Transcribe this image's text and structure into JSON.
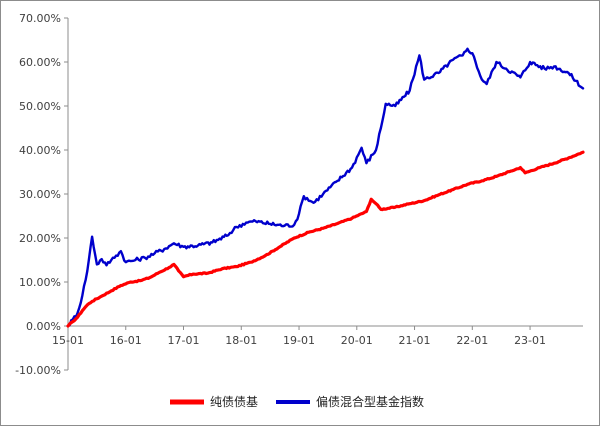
{
  "chart_data": {
    "type": "line",
    "title": "",
    "xlabel": "",
    "ylabel": "",
    "y_axis": {
      "ylim": [
        -10,
        70
      ],
      "step": 10,
      "tick_labels": [
        "-10.00%",
        "0.00%",
        "10.00%",
        "20.00%",
        "30.00%",
        "40.00%",
        "50.00%",
        "60.00%",
        "70.00%"
      ]
    },
    "x_axis": {
      "xlim": [
        "2015-01",
        "2023-12"
      ],
      "tick_labels": [
        "15-01",
        "16-01",
        "17-01",
        "18-01",
        "19-01",
        "20-01",
        "21-01",
        "22-01",
        "23-01"
      ]
    },
    "grid": false,
    "legend_position": "bottom",
    "series": [
      {
        "name": "纯债债基",
        "color": "#ff0000",
        "points": [
          [
            "2015-01",
            0.0
          ],
          [
            "2015-02",
            1.0
          ],
          [
            "2015-03",
            2.0
          ],
          [
            "2015-04",
            3.5
          ],
          [
            "2015-05",
            4.8
          ],
          [
            "2015-06",
            5.6
          ],
          [
            "2015-08",
            6.8
          ],
          [
            "2015-10",
            8.0
          ],
          [
            "2015-12",
            9.2
          ],
          [
            "2016-02",
            10.0
          ],
          [
            "2016-04",
            10.3
          ],
          [
            "2016-06",
            11.0
          ],
          [
            "2016-08",
            12.2
          ],
          [
            "2016-10",
            13.3
          ],
          [
            "2016-11",
            14.0
          ],
          [
            "2016-12",
            12.5
          ],
          [
            "2017-01",
            11.2
          ],
          [
            "2017-03",
            11.8
          ],
          [
            "2017-06",
            12.0
          ],
          [
            "2017-09",
            13.0
          ],
          [
            "2017-12",
            13.5
          ],
          [
            "2018-03",
            14.5
          ],
          [
            "2018-06",
            16.0
          ],
          [
            "2018-09",
            18.0
          ],
          [
            "2018-12",
            20.0
          ],
          [
            "2019-03",
            21.3
          ],
          [
            "2019-06",
            22.2
          ],
          [
            "2019-09",
            23.3
          ],
          [
            "2019-12",
            24.5
          ],
          [
            "2020-03",
            26.0
          ],
          [
            "2020-04",
            28.8
          ],
          [
            "2020-05",
            27.8
          ],
          [
            "2020-06",
            26.5
          ],
          [
            "2020-09",
            27.0
          ],
          [
            "2020-12",
            27.8
          ],
          [
            "2021-03",
            28.5
          ],
          [
            "2021-06",
            29.8
          ],
          [
            "2021-09",
            31.0
          ],
          [
            "2021-12",
            32.2
          ],
          [
            "2022-03",
            33.0
          ],
          [
            "2022-06",
            34.0
          ],
          [
            "2022-09",
            35.2
          ],
          [
            "2022-11",
            36.0
          ],
          [
            "2022-12",
            34.8
          ],
          [
            "2023-03",
            36.0
          ],
          [
            "2023-06",
            37.0
          ],
          [
            "2023-09",
            38.2
          ],
          [
            "2023-12",
            39.5
          ]
        ]
      },
      {
        "name": "偏债混合型基金指数",
        "color": "#0000cc",
        "points": [
          [
            "2015-01",
            0.0
          ],
          [
            "2015-02",
            1.5
          ],
          [
            "2015-03",
            3.0
          ],
          [
            "2015-04",
            7.0
          ],
          [
            "2015-05",
            12.5
          ],
          [
            "2015-06",
            20.3
          ],
          [
            "2015-07",
            14.0
          ],
          [
            "2015-08",
            15.2
          ],
          [
            "2015-09",
            13.8
          ],
          [
            "2015-10",
            15.0
          ],
          [
            "2015-11",
            16.0
          ],
          [
            "2015-12",
            17.0
          ],
          [
            "2016-01",
            14.5
          ],
          [
            "2016-03",
            15.0
          ],
          [
            "2016-05",
            15.5
          ],
          [
            "2016-07",
            16.5
          ],
          [
            "2016-09",
            17.5
          ],
          [
            "2016-11",
            18.8
          ],
          [
            "2017-01",
            18.0
          ],
          [
            "2017-04",
            18.3
          ],
          [
            "2017-07",
            19.0
          ],
          [
            "2017-10",
            20.5
          ],
          [
            "2017-12",
            22.5
          ],
          [
            "2018-02",
            23.5
          ],
          [
            "2018-04",
            23.8
          ],
          [
            "2018-07",
            23.2
          ],
          [
            "2018-10",
            22.8
          ],
          [
            "2018-12",
            23.0
          ],
          [
            "2019-01",
            25.5
          ],
          [
            "2019-02",
            29.5
          ],
          [
            "2019-04",
            28.0
          ],
          [
            "2019-06",
            30.0
          ],
          [
            "2019-09",
            33.0
          ],
          [
            "2019-12",
            36.0
          ],
          [
            "2020-02",
            40.5
          ],
          [
            "2020-03",
            37.0
          ],
          [
            "2020-05",
            40.0
          ],
          [
            "2020-06",
            45.0
          ],
          [
            "2020-07",
            50.5
          ],
          [
            "2020-09",
            50.0
          ],
          [
            "2020-12",
            53.5
          ],
          [
            "2021-02",
            61.5
          ],
          [
            "2021-03",
            56.0
          ],
          [
            "2021-06",
            57.5
          ],
          [
            "2021-09",
            60.5
          ],
          [
            "2021-11",
            61.5
          ],
          [
            "2021-12",
            63.0
          ],
          [
            "2022-01",
            62.0
          ],
          [
            "2022-03",
            56.0
          ],
          [
            "2022-04",
            55.0
          ],
          [
            "2022-06",
            60.0
          ],
          [
            "2022-08",
            58.5
          ],
          [
            "2022-11",
            56.5
          ],
          [
            "2023-01",
            60.0
          ],
          [
            "2023-04",
            58.5
          ],
          [
            "2023-06",
            59.0
          ],
          [
            "2023-09",
            57.5
          ],
          [
            "2023-12",
            54.0
          ]
        ]
      }
    ]
  }
}
